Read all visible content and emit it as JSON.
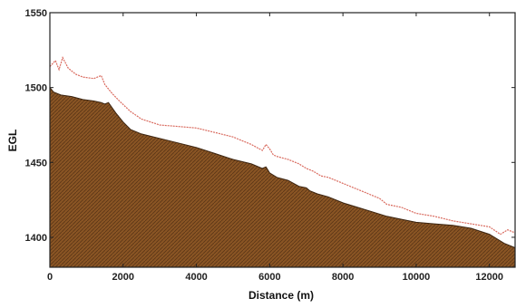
{
  "chart_data": {
    "type": "area",
    "xlabel": "Distance (m)",
    "ylabel": "EGL",
    "xlim": [
      0,
      12700
    ],
    "ylim": [
      1380,
      1550
    ],
    "x_ticks": [
      0,
      2000,
      4000,
      6000,
      8000,
      10000,
      12000
    ],
    "y_ticks": [
      1400,
      1450,
      1500,
      1550
    ],
    "grid": false,
    "colors": {
      "ground": "#8a5524",
      "ground_edge": "#3b2410",
      "egl": "#d96a5e"
    },
    "series": [
      {
        "kind": "area",
        "x": [
          0,
          100,
          300,
          600,
          900,
          1200,
          1400,
          1500,
          1600,
          1800,
          2000,
          2200,
          2500,
          3000,
          3500,
          4000,
          4500,
          5000,
          5500,
          5800,
          5900,
          6000,
          6200,
          6500,
          6800,
          7000,
          7100,
          7300,
          7600,
          8000,
          8400,
          8800,
          9200,
          9600,
          10000,
          10500,
          11000,
          11500,
          12000,
          12400,
          12700
        ],
        "y": [
          1500,
          1497,
          1495,
          1494,
          1492,
          1491,
          1490,
          1489,
          1490,
          1483,
          1477,
          1472,
          1469,
          1466,
          1463,
          1460,
          1456,
          1452,
          1449,
          1446,
          1447,
          1443,
          1440,
          1438,
          1434,
          1433,
          1431,
          1429,
          1427,
          1423,
          1420,
          1417,
          1414,
          1412,
          1410,
          1409,
          1408,
          1406,
          1402,
          1396,
          1393
        ]
      },
      {
        "kind": "line",
        "x": [
          0,
          150,
          250,
          350,
          500,
          700,
          900,
          1200,
          1400,
          1500,
          1700,
          1900,
          2200,
          2500,
          3000,
          3500,
          4000,
          4500,
          5000,
          5500,
          5800,
          5900,
          6000,
          6100,
          6200,
          6500,
          6800,
          7000,
          7200,
          7400,
          7600,
          8000,
          8400,
          8800,
          9000,
          9200,
          9600,
          10000,
          10500,
          11000,
          11500,
          12000,
          12300,
          12500,
          12700
        ],
        "y": [
          1514,
          1518,
          1512,
          1520,
          1513,
          1509,
          1507,
          1506,
          1508,
          1502,
          1496,
          1491,
          1484,
          1479,
          1475,
          1474,
          1473,
          1470,
          1467,
          1462,
          1458,
          1462,
          1459,
          1455,
          1454,
          1452,
          1449,
          1446,
          1444,
          1441,
          1440,
          1436,
          1432,
          1428,
          1426,
          1422,
          1420,
          1416,
          1414,
          1411,
          1409,
          1407,
          1402,
          1405,
          1403
        ]
      }
    ]
  }
}
